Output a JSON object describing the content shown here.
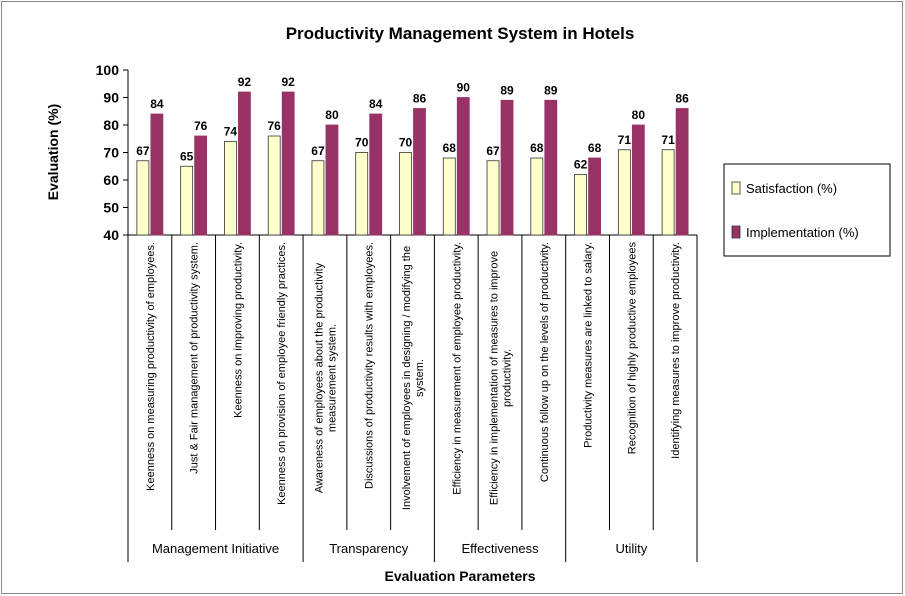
{
  "chart_data": {
    "type": "bar",
    "title": "Productivity Management System in Hotels",
    "x_label": "Evaluation Parameters",
    "y_label": "Evaluation (%)",
    "categories": [
      "Keenness on measuring productivity of employees.",
      "Just & Fair management of productivity system.",
      "Keenness on improving productivity.",
      "Keenness on provision of employee friendly practices.",
      "Awareness of employees about the productivity measurement system.",
      "Discussions of productivity results with employees.",
      "Involvement of employees in designing / modifying the system.",
      "Efficiency in measurement of employee productivity.",
      "Efficiency in implementation of measures to improve productivity.",
      "Continuous follow up on the levels of productivity.",
      "Productivity measures are linked to salary.",
      "Recognition of highly productive employees",
      "Identifying measures to improve productivity."
    ],
    "groups": [
      {
        "name": "Management Initiative",
        "size": 4
      },
      {
        "name": "Transparency",
        "size": 3
      },
      {
        "name": "Effectiveness",
        "size": 3
      },
      {
        "name": "Utility",
        "size": 3
      }
    ],
    "series": [
      {
        "name": "Satisfaction (%)",
        "color": "#ffffcc",
        "values": [
          67,
          65,
          74,
          76,
          67,
          70,
          70,
          68,
          67,
          68,
          62,
          71,
          71
        ]
      },
      {
        "name": "Implementation (%)",
        "color": "#993366",
        "values": [
          84,
          76,
          92,
          92,
          80,
          84,
          86,
          90,
          89,
          89,
          68,
          80,
          86
        ]
      }
    ],
    "ylim": [
      40,
      100
    ],
    "yticks": [
      40,
      50,
      60,
      70,
      80,
      90,
      100
    ],
    "legend": "right"
  }
}
